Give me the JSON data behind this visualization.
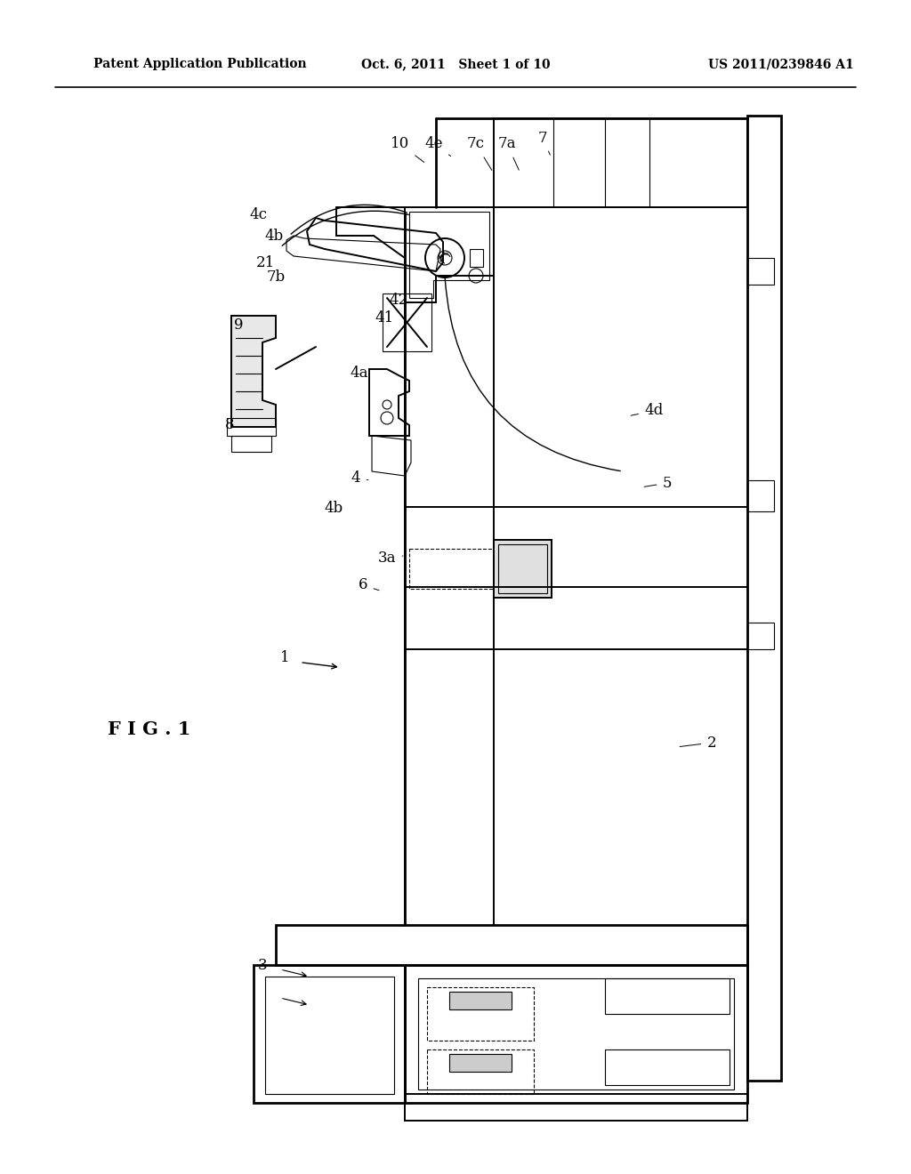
{
  "background_color": "#ffffff",
  "header_left": "Patent Application Publication",
  "header_center": "Oct. 6, 2011   Sheet 1 of 10",
  "header_right": "US 2011/0239846 A1",
  "fig_label": "F I G . 1",
  "lw1": 0.8,
  "lw2": 1.4,
  "lw3": 2.0
}
